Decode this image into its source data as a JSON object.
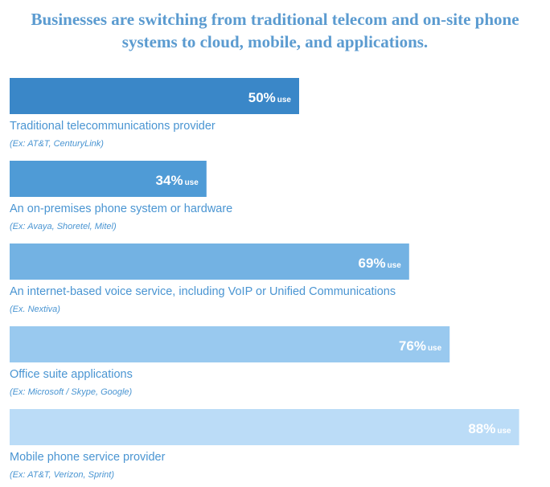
{
  "chart_data": {
    "type": "bar",
    "orientation": "horizontal",
    "title": "Businesses are switching from traditional telecom and on-site phone systems to cloud, mobile, and applications.",
    "categories": [
      "Traditional telecommunications provider",
      "An on-premises phone system or hardware",
      "An internet-based voice service, including VoIP or Unified Communications",
      "Office suite applications",
      "Mobile phone service provider"
    ],
    "examples": [
      "(Ex: AT&T, CenturyLink)",
      "(Ex: Avaya, Shoretel, Mitel)",
      "(Ex. Nextiva)",
      "(Ex: Microsoft / Skype, Google)",
      "(Ex: AT&T, Verizon, Sprint)"
    ],
    "values": [
      50,
      34,
      69,
      76,
      88
    ],
    "value_labels": [
      "50%",
      "34%",
      "69%",
      "76%",
      "88%"
    ],
    "value_label_suffix": "use",
    "colors": [
      "#3a87c8",
      "#4f9bd6",
      "#73b2e3",
      "#99c9ef",
      "#bbdcf7"
    ]
  }
}
